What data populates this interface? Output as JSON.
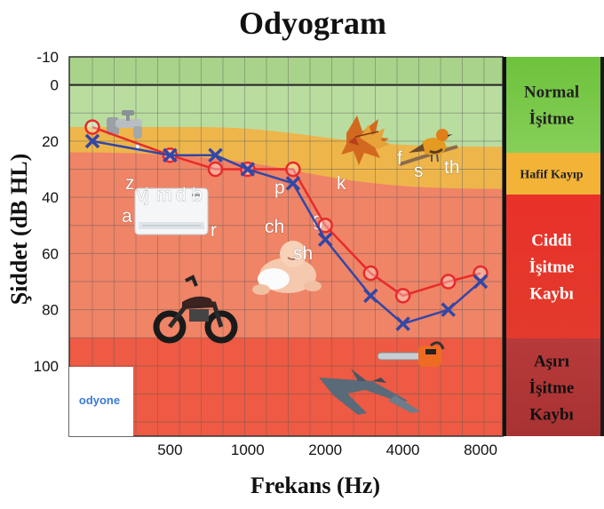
{
  "chart_data": {
    "type": "line",
    "title": "Odyogram",
    "xlabel": "Frekans (Hz)",
    "ylabel": "Şiddet (dB HL)",
    "x_tick_labels": [
      "500",
      "1000",
      "2000",
      "4000",
      "8000"
    ],
    "y_tick_labels": [
      "-10",
      "0",
      "20",
      "40",
      "60",
      "80",
      "100"
    ],
    "ylim": [
      -10,
      125
    ],
    "y_inverted": true,
    "grid": true,
    "x_points": [
      250,
      500,
      750,
      1000,
      1500,
      2000,
      3000,
      4000,
      6000,
      8000
    ],
    "series": [
      {
        "marker": "circle",
        "color": "#e82a2a",
        "values": [
          15,
          25,
          30,
          30,
          30,
          50,
          67,
          75,
          70,
          67
        ]
      },
      {
        "marker": "cross",
        "color": "#3347a6",
        "values": [
          20,
          25,
          25,
          30,
          35,
          55,
          75,
          85,
          80,
          70
        ]
      }
    ],
    "zones": [
      {
        "label_lines": [
          "Normal",
          "İşitme"
        ],
        "color": "#7dc74f"
      },
      {
        "label_lines": [
          "Hafif Kayıp"
        ],
        "color": "#f2b337"
      },
      {
        "label_lines": [
          "Ciddi",
          "İşitme",
          "Kaybı"
        ],
        "color": "#e8312b"
      },
      {
        "label_lines": [
          "Aşırı",
          "İşitme",
          "Kaybı"
        ],
        "color": "#b33535"
      }
    ],
    "speech_sounds": [
      "z",
      "v",
      "j",
      "m",
      "d",
      "b",
      "a",
      "r",
      "p",
      "ch",
      "g",
      "sh",
      "k",
      "f",
      "s",
      "th"
    ],
    "logo_text": "odyone"
  }
}
